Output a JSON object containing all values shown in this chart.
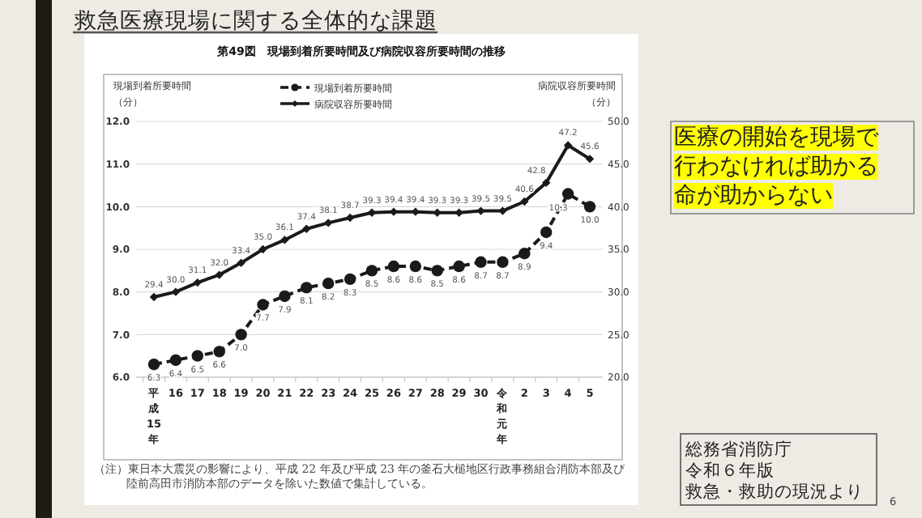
{
  "chart_data": {
    "type": "line",
    "title": "第49図　現場到着所要時間及び病院収容所要時間の推移",
    "subtitle": "救急医療現場に関する全体的な課題",
    "ylabel": "現場到着所要時間（分）",
    "y2label": "病院収容所要時間（分）",
    "categories": [
      "平成15年",
      "16",
      "17",
      "18",
      "19",
      "20",
      "21",
      "22",
      "23",
      "24",
      "25",
      "26",
      "27",
      "28",
      "29",
      "30",
      "令和元年",
      "2",
      "3",
      "4",
      "5"
    ],
    "series": [
      {
        "name": "現場到着所要時間",
        "color": "#1a1a1a",
        "marker": "circle",
        "line_style": "dashed",
        "values": [
          6.3,
          6.4,
          6.5,
          6.6,
          7.0,
          7.7,
          7.9,
          8.1,
          8.2,
          8.3,
          8.5,
          8.6,
          8.6,
          8.5,
          8.6,
          8.7,
          8.7,
          8.9,
          9.4,
          10.3,
          10.0
        ],
        "value_labels": [
          "6.3",
          "6.4",
          "6.5",
          "6.6",
          "7.0",
          "7.7",
          "7.9",
          "8.1",
          "8.2",
          "8.3",
          "8.5",
          "8.6",
          "8.6",
          "8.5",
          "8.6",
          "8.7",
          "8.7",
          "8.9",
          "9.4",
          "10.3",
          "10.0"
        ]
      },
      {
        "name": "病院収容所要時間",
        "color": "#1a1a1a",
        "marker": "diamond",
        "line_style": "solid",
        "axis": "y2",
        "values": [
          29.4,
          30.0,
          31.1,
          32.0,
          33.4,
          35.0,
          36.1,
          37.4,
          38.1,
          38.7,
          39.3,
          39.4,
          39.4,
          39.3,
          39.3,
          39.5,
          39.5,
          40.6,
          42.8,
          47.2,
          45.6
        ],
        "value_labels": [
          "29.4",
          "30.0",
          "31.1",
          "32.0",
          "33.4",
          "35.0",
          "36.1",
          "37.4",
          "38.1",
          "38.7",
          "39.3",
          "39.4",
          "39.4",
          "39.3",
          "39.3",
          "39.5",
          "39.5",
          "40.6",
          "42.8",
          "47.2",
          "45.6"
        ]
      }
    ],
    "ylim": [
      6,
      12
    ],
    "yticks": [
      {
        "value": 6,
        "label": "6.0"
      },
      {
        "value": 7,
        "label": "7.0"
      },
      {
        "value": 8,
        "label": "8.0"
      },
      {
        "value": 9,
        "label": "9.0"
      },
      {
        "value": 10,
        "label": "10.0"
      },
      {
        "value": 11,
        "label": "11.0"
      },
      {
        "value": 12,
        "label": "12.0"
      }
    ],
    "y2lim": [
      20,
      50
    ],
    "y2ticks": [
      {
        "value": 20,
        "label": "20.0"
      },
      {
        "value": 25,
        "label": "25.0"
      },
      {
        "value": 30,
        "label": "30.0"
      },
      {
        "value": 35,
        "label": "35.0"
      },
      {
        "value": 40,
        "label": "40.0"
      },
      {
        "value": 45,
        "label": "45.0"
      },
      {
        "value": 50,
        "label": "50.0"
      }
    ],
    "grid": "y",
    "legend": "top",
    "annotations": [
      "（注）東日本大震災の影響により、平成 22 年及び平成 23 年の釜石大槌地区行政事務組合消防本部及び陸前高田市消防本部のデータを除いた数値で集計している。",
      "医療の開始を現場で行わなければ助かる命が助からない",
      "総務省消防庁",
      "令和６年版",
      "救急・救助の現況より",
      "6"
    ]
  }
}
